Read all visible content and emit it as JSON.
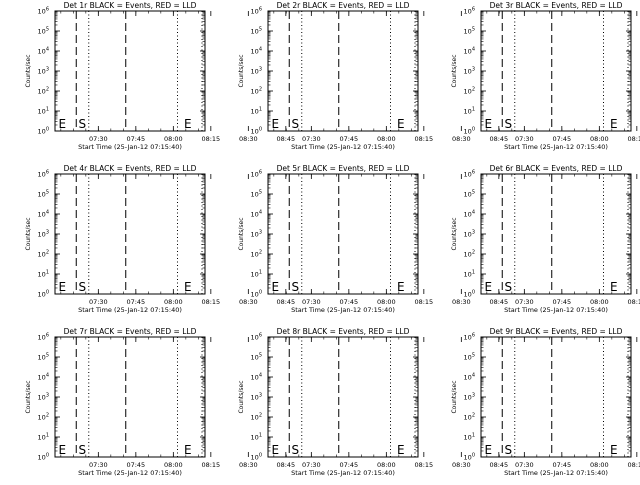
{
  "chart_data": [
    {
      "type": "line",
      "title": "Det 1r BLACK = Events, RED = LLD",
      "xlabel": "Start Time (25-Jan-12 07:15:40)",
      "ylabel": "Counts/sec",
      "x_ticks": [
        "07:30",
        "07:45",
        "08:00",
        "08:15",
        "08:30",
        "08:45"
      ],
      "x_range_minutes": [
        -3,
        57
      ],
      "y_scale": "log",
      "y_ticks": [
        "10^0",
        "10^1",
        "10^2",
        "10^3",
        "10^4",
        "10^5",
        "10^6"
      ],
      "series": [],
      "annotations": [
        {
          "text": "E",
          "x_minutes": -1.6
        },
        {
          "text": "S",
          "x_minutes": 6.4
        },
        {
          "text": "E",
          "x_minutes": 48.6
        }
      ],
      "vlines": [
        {
          "style": "dashed",
          "x_minutes": 5.5
        },
        {
          "style": "dotted",
          "x_minutes": 10.5
        },
        {
          "style": "dashed",
          "x_minutes": 25.3
        },
        {
          "style": "dotted",
          "x_minutes": 46.0
        },
        {
          "style": "dotted",
          "x_minutes": 55.8
        }
      ]
    },
    {
      "type": "line",
      "title": "Det 2r BLACK = Events, RED = LLD",
      "xlabel": "Start Time (25-Jan-12 07:15:40)",
      "ylabel": "Counts/sec",
      "x_ticks": [
        "07:30",
        "07:45",
        "08:00",
        "08:15",
        "08:30",
        "08:45"
      ],
      "x_range_minutes": [
        -3,
        57
      ],
      "y_scale": "log",
      "y_ticks": [
        "10^0",
        "10^1",
        "10^2",
        "10^3",
        "10^4",
        "10^5",
        "10^6"
      ],
      "series": [],
      "annotations": [
        {
          "text": "E",
          "x_minutes": -1.6
        },
        {
          "text": "S",
          "x_minutes": 6.4
        },
        {
          "text": "E",
          "x_minutes": 48.6
        }
      ],
      "vlines": [
        {
          "style": "dashed",
          "x_minutes": 5.5
        },
        {
          "style": "dotted",
          "x_minutes": 10.5
        },
        {
          "style": "dashed",
          "x_minutes": 25.3
        },
        {
          "style": "dotted",
          "x_minutes": 46.0
        },
        {
          "style": "dotted",
          "x_minutes": 55.8
        }
      ]
    },
    {
      "type": "line",
      "title": "Det 3r BLACK = Events, RED = LLD",
      "xlabel": "Start Time (25-Jan-12 07:15:40)",
      "ylabel": "Counts/sec",
      "x_ticks": [
        "07:30",
        "07:45",
        "08:00",
        "08:15",
        "08:30",
        "08:45"
      ],
      "x_range_minutes": [
        -3,
        57
      ],
      "y_scale": "log",
      "y_ticks": [
        "10^0",
        "10^1",
        "10^2",
        "10^3",
        "10^4",
        "10^5",
        "10^6"
      ],
      "series": [],
      "annotations": [
        {
          "text": "E",
          "x_minutes": -1.6
        },
        {
          "text": "S",
          "x_minutes": 6.4
        },
        {
          "text": "E",
          "x_minutes": 48.6
        }
      ],
      "vlines": [
        {
          "style": "dashed",
          "x_minutes": 5.5
        },
        {
          "style": "dotted",
          "x_minutes": 10.5
        },
        {
          "style": "dashed",
          "x_minutes": 25.3
        },
        {
          "style": "dotted",
          "x_minutes": 46.0
        },
        {
          "style": "dotted",
          "x_minutes": 55.8
        }
      ]
    },
    {
      "type": "line",
      "title": "Det 4r BLACK = Events, RED = LLD",
      "xlabel": "Start Time (25-Jan-12 07:15:40)",
      "ylabel": "Counts/sec",
      "x_ticks": [
        "07:30",
        "07:45",
        "08:00",
        "08:15",
        "08:30",
        "08:45"
      ],
      "x_range_minutes": [
        -3,
        57
      ],
      "y_scale": "log",
      "y_ticks": [
        "10^0",
        "10^1",
        "10^2",
        "10^3",
        "10^4",
        "10^5",
        "10^6"
      ],
      "series": [],
      "annotations": [
        {
          "text": "E",
          "x_minutes": -1.6
        },
        {
          "text": "S",
          "x_minutes": 6.4
        },
        {
          "text": "E",
          "x_minutes": 48.6
        }
      ],
      "vlines": [
        {
          "style": "dashed",
          "x_minutes": 5.5
        },
        {
          "style": "dotted",
          "x_minutes": 10.5
        },
        {
          "style": "dashed",
          "x_minutes": 25.3
        },
        {
          "style": "dotted",
          "x_minutes": 46.0
        },
        {
          "style": "dotted",
          "x_minutes": 55.8
        }
      ]
    },
    {
      "type": "line",
      "title": "Det 5r BLACK = Events, RED = LLD",
      "xlabel": "Start Time (25-Jan-12 07:15:40)",
      "ylabel": "Counts/sec",
      "x_ticks": [
        "07:30",
        "07:45",
        "08:00",
        "08:15",
        "08:30",
        "08:45"
      ],
      "x_range_minutes": [
        -3,
        57
      ],
      "y_scale": "log",
      "y_ticks": [
        "10^0",
        "10^1",
        "10^2",
        "10^3",
        "10^4",
        "10^5",
        "10^6"
      ],
      "series": [],
      "annotations": [
        {
          "text": "E",
          "x_minutes": -1.6
        },
        {
          "text": "S",
          "x_minutes": 6.4
        },
        {
          "text": "E",
          "x_minutes": 48.6
        }
      ],
      "vlines": [
        {
          "style": "dashed",
          "x_minutes": 5.5
        },
        {
          "style": "dotted",
          "x_minutes": 10.5
        },
        {
          "style": "dashed",
          "x_minutes": 25.3
        },
        {
          "style": "dotted",
          "x_minutes": 46.0
        },
        {
          "style": "dotted",
          "x_minutes": 55.8
        }
      ]
    },
    {
      "type": "line",
      "title": "Det 6r BLACK = Events, RED = LLD",
      "xlabel": "Start Time (25-Jan-12 07:15:40)",
      "ylabel": "Counts/sec",
      "x_ticks": [
        "07:30",
        "07:45",
        "08:00",
        "08:15",
        "08:30",
        "08:45"
      ],
      "x_range_minutes": [
        -3,
        57
      ],
      "y_scale": "log",
      "y_ticks": [
        "10^0",
        "10^1",
        "10^2",
        "10^3",
        "10^4",
        "10^5",
        "10^6"
      ],
      "series": [],
      "annotations": [
        {
          "text": "E",
          "x_minutes": -1.6
        },
        {
          "text": "S",
          "x_minutes": 6.4
        },
        {
          "text": "E",
          "x_minutes": 48.6
        }
      ],
      "vlines": [
        {
          "style": "dashed",
          "x_minutes": 5.5
        },
        {
          "style": "dotted",
          "x_minutes": 10.5
        },
        {
          "style": "dashed",
          "x_minutes": 25.3
        },
        {
          "style": "dotted",
          "x_minutes": 46.0
        },
        {
          "style": "dotted",
          "x_minutes": 55.8
        }
      ]
    },
    {
      "type": "line",
      "title": "Det 7r BLACK = Events, RED = LLD",
      "xlabel": "Start Time (25-Jan-12 07:15:40)",
      "ylabel": "Counts/sec",
      "x_ticks": [
        "07:30",
        "07:45",
        "08:00",
        "08:15",
        "08:30",
        "08:45"
      ],
      "x_range_minutes": [
        -3,
        57
      ],
      "y_scale": "log",
      "y_ticks": [
        "10^0",
        "10^1",
        "10^2",
        "10^3",
        "10^4",
        "10^5",
        "10^6"
      ],
      "series": [],
      "annotations": [
        {
          "text": "E",
          "x_minutes": -1.6
        },
        {
          "text": "S",
          "x_minutes": 6.4
        },
        {
          "text": "E",
          "x_minutes": 48.6
        }
      ],
      "vlines": [
        {
          "style": "dashed",
          "x_minutes": 5.5
        },
        {
          "style": "dotted",
          "x_minutes": 10.5
        },
        {
          "style": "dashed",
          "x_minutes": 25.3
        },
        {
          "style": "dotted",
          "x_minutes": 46.0
        },
        {
          "style": "dotted",
          "x_minutes": 55.8
        }
      ]
    },
    {
      "type": "line",
      "title": "Det 8r BLACK = Events, RED = LLD",
      "xlabel": "Start Time (25-Jan-12 07:15:40)",
      "ylabel": "Counts/sec",
      "x_ticks": [
        "07:30",
        "07:45",
        "08:00",
        "08:15",
        "08:30",
        "08:45"
      ],
      "x_range_minutes": [
        -3,
        57
      ],
      "y_scale": "log",
      "y_ticks": [
        "10^0",
        "10^1",
        "10^2",
        "10^3",
        "10^4",
        "10^5",
        "10^6"
      ],
      "series": [],
      "annotations": [
        {
          "text": "E",
          "x_minutes": -1.6
        },
        {
          "text": "S",
          "x_minutes": 6.4
        },
        {
          "text": "E",
          "x_minutes": 48.6
        }
      ],
      "vlines": [
        {
          "style": "dashed",
          "x_minutes": 5.5
        },
        {
          "style": "dotted",
          "x_minutes": 10.5
        },
        {
          "style": "dashed",
          "x_minutes": 25.3
        },
        {
          "style": "dotted",
          "x_minutes": 46.0
        },
        {
          "style": "dotted",
          "x_minutes": 55.8
        }
      ]
    },
    {
      "type": "line",
      "title": "Det 9r BLACK = Events, RED = LLD",
      "xlabel": "Start Time (25-Jan-12 07:15:40)",
      "ylabel": "Counts/sec",
      "x_ticks": [
        "07:30",
        "07:45",
        "08:00",
        "08:15",
        "08:30",
        "08:45"
      ],
      "x_range_minutes": [
        -3,
        57
      ],
      "y_scale": "log",
      "y_ticks": [
        "10^0",
        "10^1",
        "10^2",
        "10^3",
        "10^4",
        "10^5",
        "10^6"
      ],
      "series": [],
      "annotations": [
        {
          "text": "E",
          "x_minutes": -1.6
        },
        {
          "text": "S",
          "x_minutes": 6.4
        },
        {
          "text": "E",
          "x_minutes": 48.6
        }
      ],
      "vlines": [
        {
          "style": "dashed",
          "x_minutes": 5.5
        },
        {
          "style": "dotted",
          "x_minutes": 10.5
        },
        {
          "style": "dashed",
          "x_minutes": 25.3
        },
        {
          "style": "dotted",
          "x_minutes": 46.0
        },
        {
          "style": "dotted",
          "x_minutes": 55.8
        }
      ]
    }
  ]
}
